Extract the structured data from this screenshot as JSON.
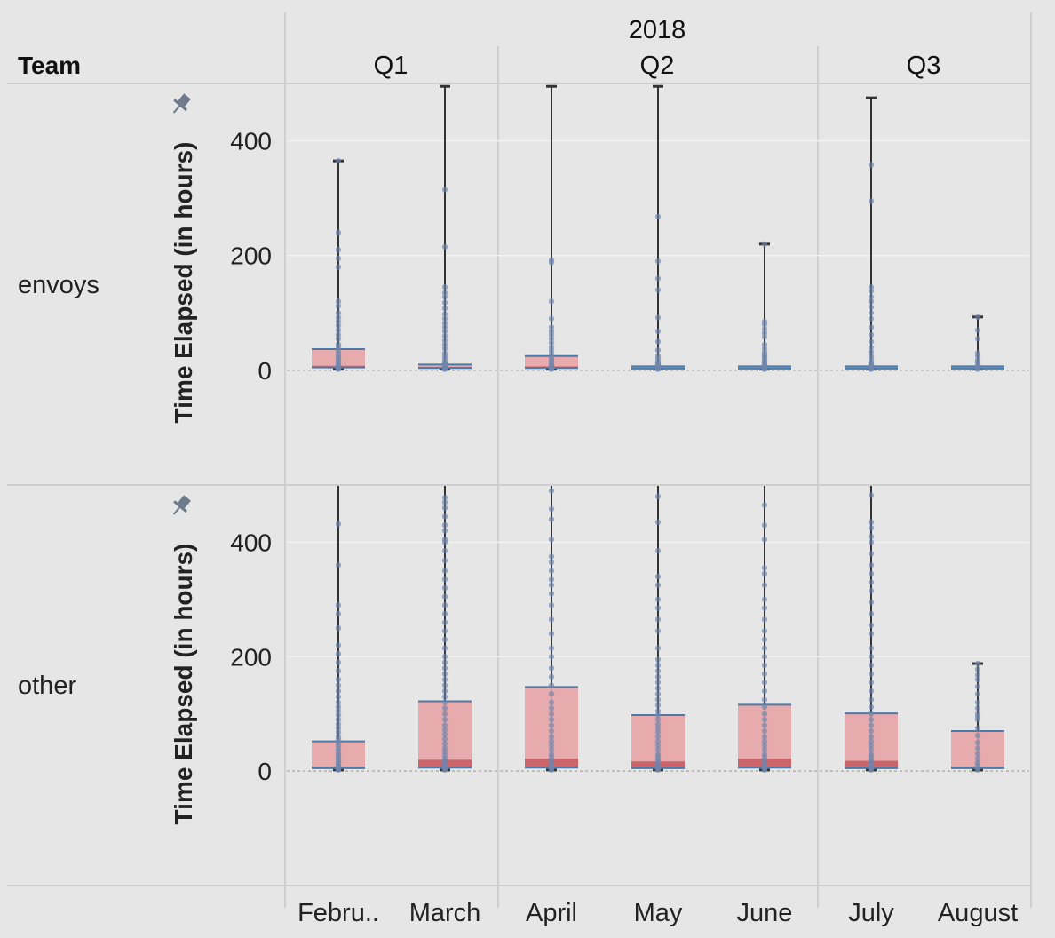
{
  "header": {
    "team_label": "Team",
    "year": "2018",
    "quarters": [
      "Q1",
      "Q2",
      "Q3"
    ]
  },
  "colors": {
    "background": "#e6e6e6",
    "grid": "#cfcfcf",
    "box_fill": "#e8a4a6",
    "median_fill": "#c7585d",
    "box_edge": "#4e79a7",
    "whisker": "#333333",
    "dot": "#6f86ad"
  },
  "chart_data": {
    "type": "box",
    "title": "",
    "xlabel": "",
    "ylabel": "Time Elapsed (in hours)",
    "ylim": [
      -200,
      500
    ],
    "yticks": [
      400,
      200,
      0
    ],
    "months": [
      "February",
      "March",
      "April",
      "May",
      "June",
      "July",
      "August"
    ],
    "month_labels": [
      "Febru..",
      "March",
      "April",
      "May",
      "June",
      "July",
      "August"
    ],
    "month_quarter": [
      "Q1",
      "Q1",
      "Q2",
      "Q2",
      "Q2",
      "Q3",
      "Q3"
    ],
    "panels": [
      {
        "team": "envoys",
        "boxes": [
          {
            "month": "February",
            "min": 2,
            "q1": 5,
            "median": 8,
            "q3": 37,
            "max": 365,
            "points": [
              2,
              3,
              4,
              5,
              6,
              8,
              10,
              14,
              18,
              22,
              26,
              30,
              35,
              40,
              45,
              55,
              62,
              70,
              78,
              85,
              92,
              100,
              112,
              120,
              180,
              195,
              210,
              240,
              365
            ]
          },
          {
            "month": "March",
            "min": 2,
            "q1": 4,
            "median": 6,
            "q3": 10,
            "max": 495,
            "points": [
              2,
              3,
              4,
              5,
              6,
              7,
              8,
              9,
              10,
              12,
              15,
              20,
              25,
              30,
              38,
              45,
              52,
              60,
              68,
              75,
              82,
              90,
              98,
              108,
              118,
              128,
              135,
              145,
              215,
              315
            ]
          },
          {
            "month": "April",
            "min": 2,
            "q1": 4,
            "median": 7,
            "q3": 25,
            "max": 495,
            "points": [
              2,
              3,
              4,
              5,
              6,
              7,
              9,
              12,
              15,
              18,
              22,
              28,
              34,
              40,
              48,
              55,
              62,
              68,
              75,
              90,
              120,
              188,
              192
            ]
          },
          {
            "month": "May",
            "min": 2,
            "q1": 3,
            "median": 5,
            "q3": 7,
            "max": 495,
            "points": [
              2,
              3,
              4,
              5,
              6,
              8,
              10,
              12,
              15,
              20,
              25,
              35,
              50,
              68,
              92,
              140,
              160,
              190,
              268
            ]
          },
          {
            "month": "June",
            "min": 2,
            "q1": 3,
            "median": 5,
            "q3": 7,
            "max": 220,
            "points": [
              2,
              3,
              4,
              5,
              6,
              8,
              10,
              12,
              15,
              18,
              22,
              25,
              28,
              32,
              38,
              45,
              58,
              65,
              72,
              80,
              85,
              220
            ]
          },
          {
            "month": "July",
            "min": 2,
            "q1": 3,
            "median": 5,
            "q3": 7,
            "max": 475,
            "points": [
              2,
              3,
              4,
              5,
              6,
              7,
              9,
              12,
              15,
              20,
              25,
              32,
              40,
              50,
              62,
              75,
              90,
              100,
              110,
              120,
              128,
              138,
              145,
              295,
              358
            ]
          },
          {
            "month": "August",
            "min": 2,
            "q1": 3,
            "median": 5,
            "q3": 7,
            "max": 93,
            "points": [
              2,
              4,
              6,
              10,
              14,
              18,
              25,
              30,
              55,
              70,
              93
            ]
          }
        ]
      },
      {
        "team": "other",
        "boxes": [
          {
            "month": "February",
            "min": 2,
            "q1": 5,
            "median": 8,
            "q3": 52,
            "max": 500,
            "points": [
              2,
              3,
              4,
              5,
              6,
              8,
              10,
              12,
              15,
              18,
              22,
              26,
              30,
              35,
              40,
              45,
              50,
              55,
              60,
              68,
              75,
              82,
              90,
              98,
              105,
              112,
              120,
              130,
              140,
              150,
              160,
              175,
              190,
              205,
              220,
              250,
              275,
              290,
              360,
              432
            ]
          },
          {
            "month": "March",
            "min": 2,
            "q1": 6,
            "median": 20,
            "q3": 122,
            "max": 500,
            "points": [
              2,
              4,
              6,
              8,
              10,
              14,
              18,
              22,
              28,
              34,
              40,
              48,
              56,
              64,
              72,
              80,
              90,
              100,
              110,
              120,
              130,
              140,
              150,
              160,
              170,
              180,
              190,
              200,
              215,
              230,
              245,
              260,
              275,
              290,
              305,
              320,
              335,
              350,
              368,
              385,
              400,
              405,
              420,
              430,
              445,
              460,
              470,
              478
            ]
          },
          {
            "month": "April",
            "min": 2,
            "q1": 6,
            "median": 22,
            "q3": 147,
            "max": 500,
            "points": [
              2,
              4,
              6,
              8,
              12,
              16,
              20,
              25,
              30,
              38,
              45,
              52,
              60,
              70,
              80,
              90,
              100,
              110,
              120,
              135,
              150,
              165,
              180,
              200,
              215,
              240,
              265,
              290,
              310,
              325,
              335,
              350,
              365,
              375,
              405,
              440,
              458,
              490
            ]
          },
          {
            "month": "May",
            "min": 2,
            "q1": 5,
            "median": 17,
            "q3": 98,
            "max": 500,
            "points": [
              2,
              4,
              6,
              8,
              12,
              16,
              20,
              25,
              30,
              38,
              45,
              52,
              60,
              68,
              75,
              82,
              90,
              98,
              105,
              115,
              125,
              135,
              145,
              155,
              165,
              175,
              185,
              195,
              215,
              245,
              265,
              285,
              300,
              325,
              340,
              385,
              435,
              480
            ]
          },
          {
            "month": "June",
            "min": 2,
            "q1": 6,
            "median": 22,
            "q3": 116,
            "max": 500,
            "points": [
              2,
              4,
              6,
              8,
              12,
              16,
              20,
              25,
              30,
              38,
              45,
              52,
              60,
              70,
              80,
              90,
              100,
              112,
              125,
              140,
              155,
              170,
              185,
              200,
              215,
              230,
              245,
              265,
              285,
              300,
              325,
              345,
              355,
              405,
              430,
              465
            ]
          },
          {
            "month": "July",
            "min": 2,
            "q1": 5,
            "median": 18,
            "q3": 101,
            "max": 500,
            "points": [
              2,
              4,
              6,
              8,
              12,
              16,
              20,
              25,
              30,
              38,
              45,
              52,
              60,
              70,
              80,
              90,
              100,
              112,
              125,
              140,
              155,
              170,
              185,
              200,
              215,
              240,
              255,
              275,
              295,
              315,
              330,
              345,
              360,
              380,
              400,
              410,
              425,
              435,
              482
            ]
          },
          {
            "month": "August",
            "min": 2,
            "q1": 5,
            "median": 8,
            "q3": 70,
            "max": 188,
            "points": [
              2,
              5,
              10,
              15,
              22,
              30,
              40,
              50,
              62,
              75,
              90,
              95,
              100,
              110,
              120,
              135,
              148,
              160,
              168,
              178,
              188
            ]
          }
        ]
      }
    ]
  }
}
